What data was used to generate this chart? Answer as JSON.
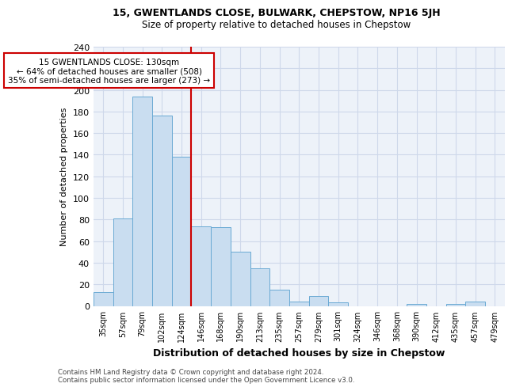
{
  "title": "15, GWENTLANDS CLOSE, BULWARK, CHEPSTOW, NP16 5JH",
  "subtitle": "Size of property relative to detached houses in Chepstow",
  "xlabel": "Distribution of detached houses by size in Chepstow",
  "ylabel": "Number of detached properties",
  "bar_color": "#c9ddf0",
  "bar_edge_color": "#6aaad4",
  "categories": [
    "35sqm",
    "57sqm",
    "79sqm",
    "102sqm",
    "124sqm",
    "146sqm",
    "168sqm",
    "190sqm",
    "213sqm",
    "235sqm",
    "257sqm",
    "279sqm",
    "301sqm",
    "324sqm",
    "346sqm",
    "368sqm",
    "390sqm",
    "412sqm",
    "435sqm",
    "457sqm",
    "479sqm"
  ],
  "values": [
    13,
    81,
    194,
    176,
    138,
    74,
    73,
    50,
    35,
    15,
    4,
    9,
    3,
    0,
    0,
    0,
    2,
    0,
    2,
    4,
    0
  ],
  "ylim": [
    0,
    240
  ],
  "yticks": [
    0,
    20,
    40,
    60,
    80,
    100,
    120,
    140,
    160,
    180,
    200,
    220,
    240
  ],
  "property_line_x": 4.5,
  "annotation_text": "15 GWENTLANDS CLOSE: 130sqm\n← 64% of detached houses are smaller (508)\n35% of semi-detached houses are larger (273) →",
  "annotation_box_color": "#ffffff",
  "annotation_box_edge_color": "#cc0000",
  "footer_text": "Contains HM Land Registry data © Crown copyright and database right 2024.\nContains public sector information licensed under the Open Government Licence v3.0.",
  "red_line_color": "#cc0000",
  "grid_color": "#ced8ea",
  "bg_color": "#edf2f9"
}
